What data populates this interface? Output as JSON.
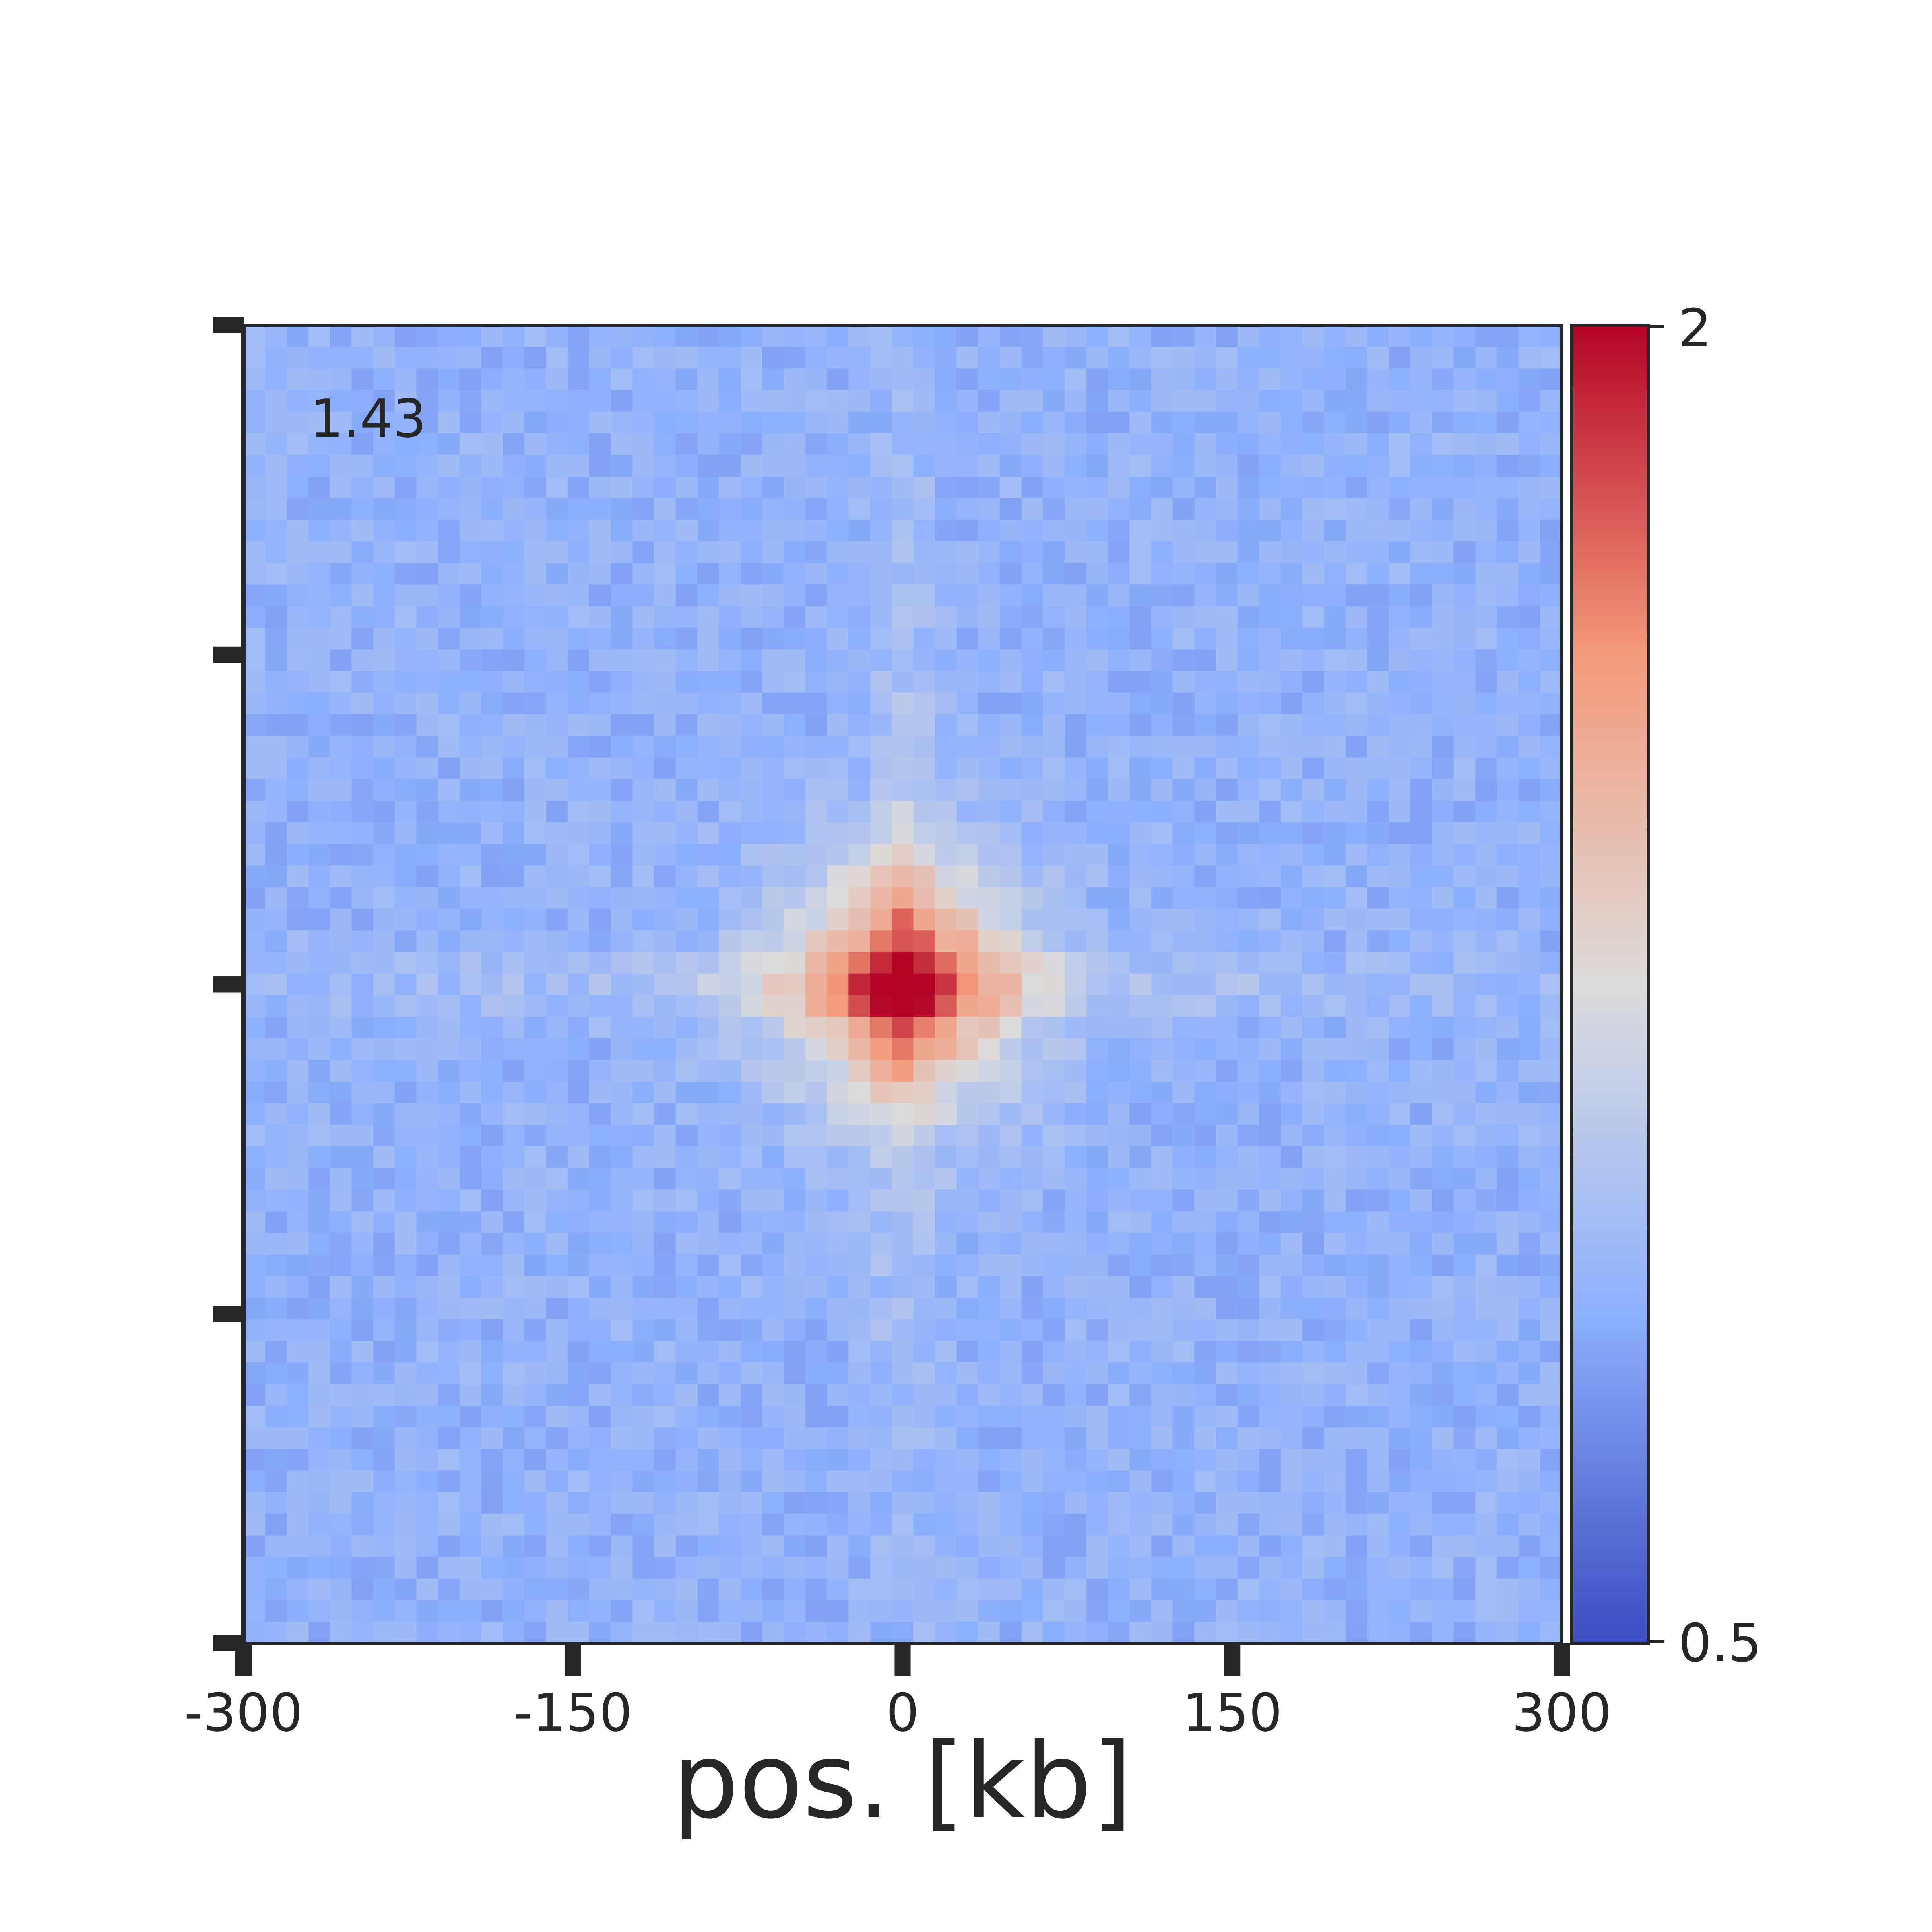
{
  "chart_data": {
    "type": "heatmap",
    "title": "",
    "xlabel": "pos. [kb]",
    "ylabel": "",
    "annotation": "1.43",
    "xlim": [
      -300,
      300
    ],
    "ylim": [
      -300,
      300
    ],
    "x_ticks": [
      -300,
      -150,
      0,
      150,
      300
    ],
    "x_tick_labels": [
      "-300",
      "-150",
      "0",
      "150",
      "300"
    ],
    "y_ticks": [
      -300,
      -150,
      0,
      150,
      300
    ],
    "grid": false,
    "colormap": "coolwarm",
    "colormap_stops": [
      "#3b4cc0",
      "#8db0fe",
      "#dddcdc",
      "#f49a7b",
      "#b40426"
    ],
    "grid_size": 61,
    "pileup_peak": 1.65,
    "background_level": 0.9,
    "colorbar": {
      "min": 0.5,
      "max": 2,
      "tick_labels": [
        "2",
        "0.5"
      ]
    }
  }
}
